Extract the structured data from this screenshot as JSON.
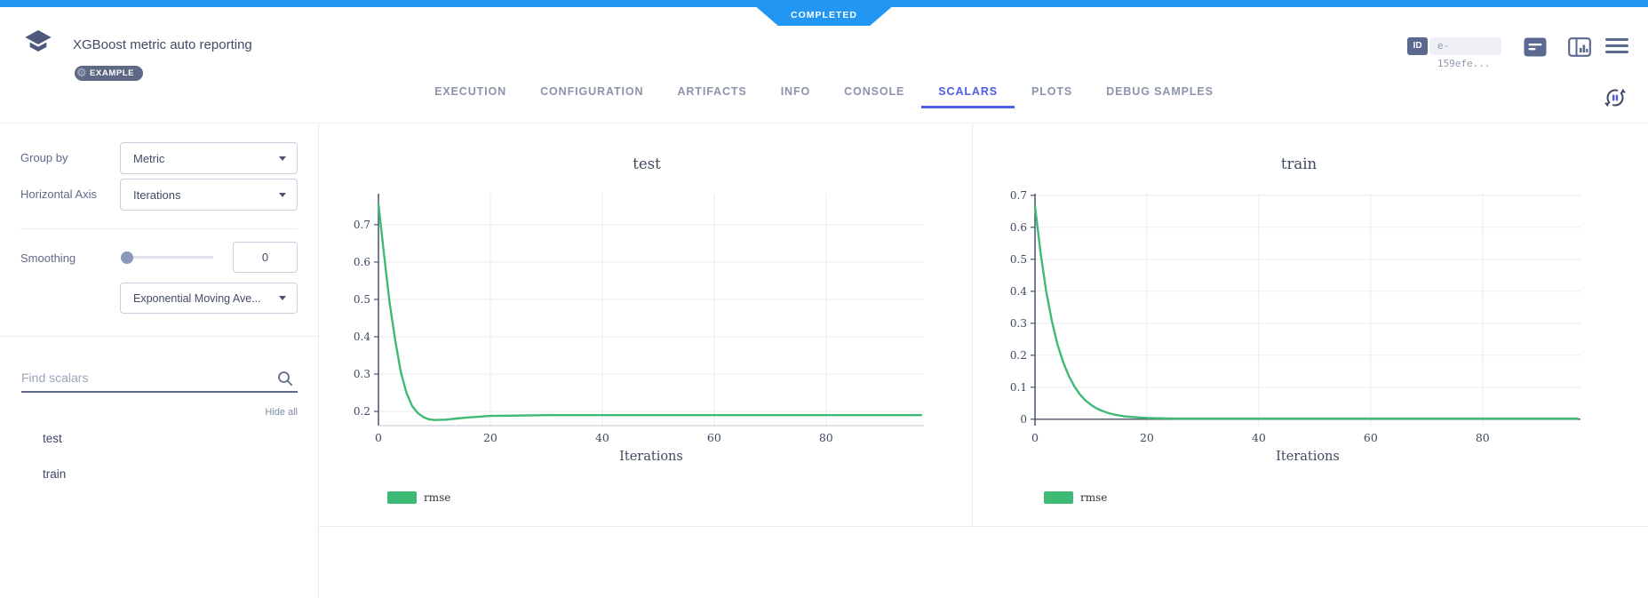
{
  "status": {
    "label": "COMPLETED"
  },
  "header": {
    "title": "XGBoost metric auto reporting",
    "example_badge": "EXAMPLE",
    "id_badge": "ID",
    "id_value": "e-159efe...",
    "colors": {
      "accent_blue": "#2196f3",
      "tab_active": "#4a5fe3",
      "icon_slate": "#5b6890"
    }
  },
  "tabs": {
    "items": [
      "EXECUTION",
      "CONFIGURATION",
      "ARTIFACTS",
      "INFO",
      "CONSOLE",
      "SCALARS",
      "PLOTS",
      "DEBUG SAMPLES"
    ],
    "active": "SCALARS"
  },
  "sidebar": {
    "group_by_label": "Group by",
    "group_by_value": "Metric",
    "horizontal_axis_label": "Horizontal Axis",
    "horizontal_axis_value": "Iterations",
    "smoothing_label": "Smoothing",
    "smoothing_value": "0",
    "smoothing_method": "Exponential Moving Ave...",
    "search_placeholder": "Find scalars",
    "hide_all": "Hide all",
    "metrics": [
      "test",
      "train"
    ]
  },
  "chart_data": [
    {
      "type": "line",
      "title": "test",
      "xlabel": "Iterations",
      "xticks": [
        0,
        20,
        40,
        60,
        80
      ],
      "yticks": [
        0.2,
        0.3,
        0.4,
        0.5,
        0.6,
        0.7
      ],
      "xlim": [
        0,
        97.5
      ],
      "ylim": [
        0.162,
        0.783
      ],
      "grid": true,
      "zero_line": false,
      "legend_position": "bottom-left",
      "series": [
        {
          "name": "rmse",
          "color": "#3fba76",
          "x": [
            0,
            1,
            2,
            3,
            4,
            5,
            6,
            7,
            8,
            9,
            10,
            12,
            14,
            16,
            18,
            20,
            25,
            30,
            40,
            50,
            60,
            70,
            80,
            90,
            97
          ],
          "y": [
            0.755,
            0.62,
            0.49,
            0.39,
            0.305,
            0.25,
            0.215,
            0.196,
            0.185,
            0.179,
            0.177,
            0.178,
            0.181,
            0.184,
            0.186,
            0.188,
            0.189,
            0.19,
            0.19,
            0.19,
            0.19,
            0.19,
            0.19,
            0.19,
            0.19
          ]
        }
      ]
    },
    {
      "type": "line",
      "title": "train",
      "xlabel": "Iterations",
      "xticks": [
        0,
        20,
        40,
        60,
        80
      ],
      "yticks": [
        0,
        0.1,
        0.2,
        0.3,
        0.4,
        0.5,
        0.6,
        0.7
      ],
      "xlim": [
        0,
        97.5
      ],
      "ylim": [
        -0.02,
        0.705
      ],
      "grid": true,
      "zero_line": true,
      "legend_position": "bottom-left",
      "series": [
        {
          "name": "rmse",
          "color": "#3fba76",
          "x": [
            0,
            1,
            2,
            3,
            4,
            5,
            6,
            7,
            8,
            9,
            10,
            11,
            12,
            13,
            14,
            15,
            16,
            18,
            20,
            22,
            25,
            30,
            40,
            50,
            60,
            70,
            80,
            90,
            97
          ],
          "y": [
            0.666,
            0.52,
            0.4,
            0.308,
            0.235,
            0.18,
            0.137,
            0.104,
            0.078,
            0.059,
            0.045,
            0.034,
            0.026,
            0.02,
            0.015,
            0.012,
            0.009,
            0.006,
            0.004,
            0.003,
            0.002,
            0.002,
            0.002,
            0.002,
            0.002,
            0.002,
            0.002,
            0.002,
            0.002
          ]
        }
      ]
    }
  ]
}
